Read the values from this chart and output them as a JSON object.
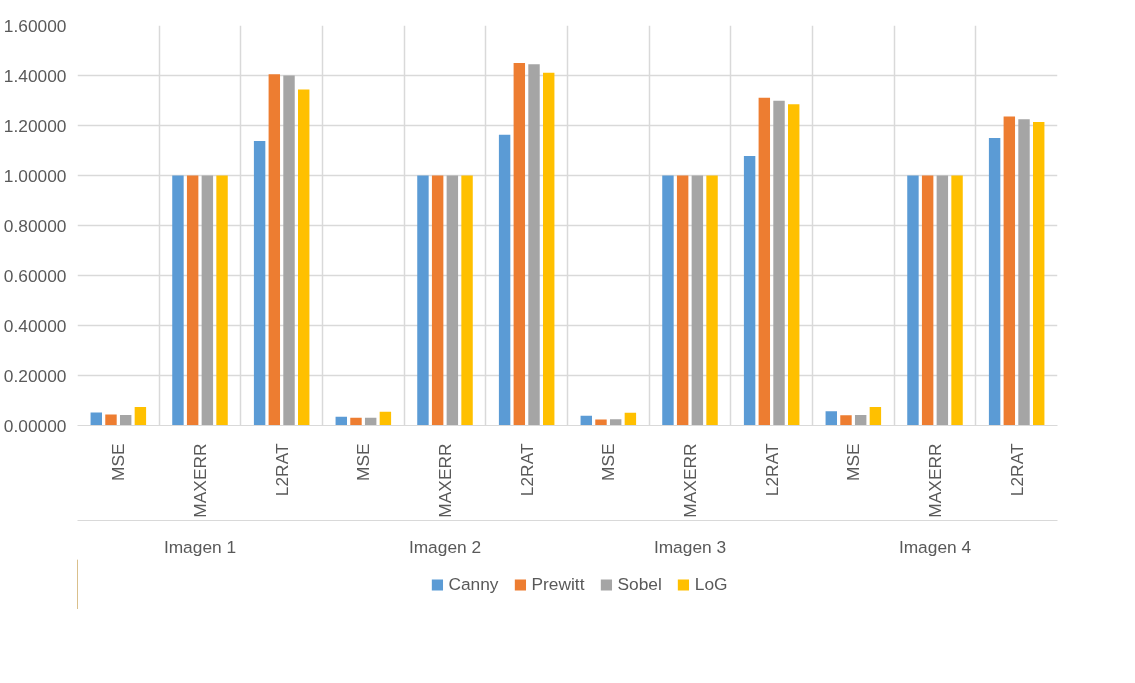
{
  "chart_data": {
    "type": "bar",
    "categories": [
      "MSE",
      "MAXERR",
      "L2RAT",
      "MSE",
      "MAXERR",
      "L2RAT",
      "MSE",
      "MAXERR",
      "L2RAT",
      "MSE",
      "MAXERR",
      "L2RAT"
    ],
    "annotations": [
      "Imagen 1",
      "Imagen 2",
      "Imagen 3",
      "Imagen 4"
    ],
    "series": [
      {
        "name": "Canny",
        "color": "#5b9bd5",
        "values": [
          0.052,
          1.0,
          1.138,
          0.035,
          1.0,
          1.163,
          0.039,
          1.0,
          1.078,
          0.057,
          1.0,
          1.15
        ]
      },
      {
        "name": "Prewitt",
        "color": "#ed7d31",
        "values": [
          0.044,
          1.0,
          1.405,
          0.031,
          1.0,
          1.45,
          0.024,
          1.0,
          1.311,
          0.041,
          1.0,
          1.236
        ]
      },
      {
        "name": "Sobel",
        "color": "#a5a5a5",
        "values": [
          0.042,
          1.0,
          1.4,
          0.031,
          1.0,
          1.445,
          0.025,
          1.0,
          1.299,
          0.042,
          1.0,
          1.225
        ]
      },
      {
        "name": "LoG",
        "color": "#ffc000",
        "values": [
          0.074,
          1.0,
          1.344,
          0.055,
          1.0,
          1.411,
          0.051,
          1.0,
          1.285,
          0.074,
          1.0,
          1.214
        ]
      }
    ],
    "ylim": [
      0,
      1.6
    ],
    "yticks": [
      {
        "value": 0,
        "label": "0.00000"
      },
      {
        "value": 0.2,
        "label": "0.20000"
      },
      {
        "value": 0.4,
        "label": "0.40000"
      },
      {
        "value": 0.6,
        "label": "0.60000"
      },
      {
        "value": 0.8,
        "label": "0.80000"
      },
      {
        "value": 1.0,
        "label": "1.00000"
      },
      {
        "value": 1.2,
        "label": "1.20000"
      },
      {
        "value": 1.4,
        "label": "1.40000"
      },
      {
        "value": 1.6,
        "label": "1.60000"
      }
    ],
    "grid": true,
    "legend": "bottom"
  }
}
